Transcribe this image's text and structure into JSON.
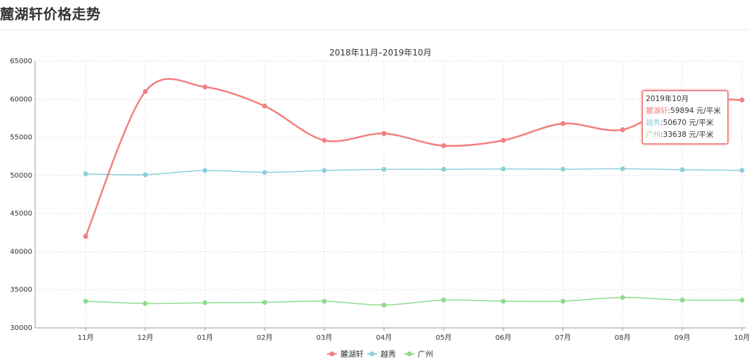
{
  "page": {
    "title": "麓湖轩价格走势"
  },
  "chart_data": {
    "type": "line",
    "title": "2018年11月–2019年10月",
    "categories": [
      "11月",
      "12月",
      "01月",
      "02月",
      "03月",
      "04月",
      "05月",
      "06月",
      "07月",
      "08月",
      "09月",
      "10月"
    ],
    "ylim": [
      30000,
      65000
    ],
    "yticks": [
      30000,
      35000,
      40000,
      45000,
      50000,
      55000,
      60000,
      65000
    ],
    "grid": true,
    "legend_position": "bottom-center",
    "series": [
      {
        "name": "麓湖轩",
        "color": "#f08080",
        "width": 2.5,
        "values": [
          42000,
          61000,
          61600,
          59100,
          54600,
          55500,
          53900,
          54600,
          56800,
          56000,
          59800,
          59894
        ]
      },
      {
        "name": "越秀",
        "color": "#8ecfdc",
        "width": 1.5,
        "values": [
          50200,
          50100,
          50650,
          50400,
          50650,
          50800,
          50800,
          50850,
          50820,
          50870,
          50750,
          50670
        ]
      },
      {
        "name": "广州",
        "color": "#8edc8e",
        "width": 1.5,
        "values": [
          33500,
          33200,
          33300,
          33350,
          33500,
          33000,
          33650,
          33500,
          33500,
          34000,
          33650,
          33638
        ]
      }
    ],
    "tooltip": {
      "title": "2019年10月",
      "rows": [
        {
          "label": "麓湖轩",
          "value": ":59894 元/平米"
        },
        {
          "label": "越秀",
          "value": ":50670 元/平米"
        },
        {
          "label": "广州",
          "value": ":33638 元/平米"
        }
      ]
    }
  }
}
